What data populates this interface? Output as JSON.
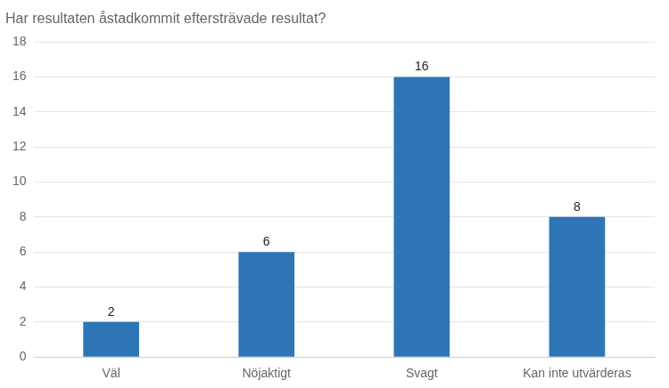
{
  "chart_data": {
    "type": "bar",
    "title": "Har resultaten åstadkommit eftersträvade resultat?",
    "categories": [
      "Väl",
      "Nöjaktigt",
      "Svagt",
      "Kan inte utvärderas"
    ],
    "values": [
      2,
      6,
      16,
      8
    ],
    "color": "#2E75B6",
    "ylim": [
      0,
      18
    ],
    "yticks": [
      0,
      2,
      4,
      6,
      8,
      10,
      12,
      14,
      16,
      18
    ],
    "grid": true,
    "data_labels": true
  }
}
